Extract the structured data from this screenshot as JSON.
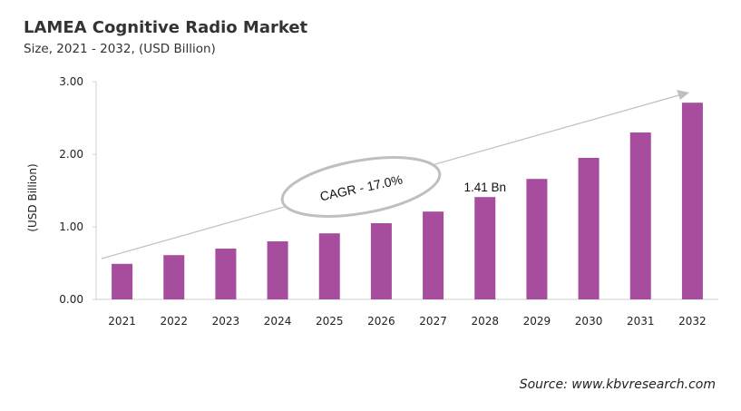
{
  "chart_data": {
    "type": "bar",
    "title": "LAMEA Cognitive Radio Market",
    "subtitle": "Size, 2021 - 2032, (USD Billion)",
    "ylabel": "(USD Billion)",
    "xlabel": "",
    "categories": [
      "2021",
      "2022",
      "2023",
      "2024",
      "2025",
      "2026",
      "2027",
      "2028",
      "2029",
      "2030",
      "2031",
      "2032"
    ],
    "values": [
      0.49,
      0.61,
      0.7,
      0.8,
      0.91,
      1.05,
      1.21,
      1.41,
      1.66,
      1.95,
      2.3,
      2.71
    ],
    "ylim": [
      0,
      3
    ],
    "yticks": [
      "0.00",
      "1.00",
      "2.00",
      "3.00"
    ],
    "grid": false,
    "bar_color": "#a64d9e",
    "annotations": {
      "data_label": "1.41 Bn",
      "data_label_category": "2028",
      "cagr": "CAGR - 17.0%"
    },
    "source": "Source: www.kbvresearch.com"
  }
}
